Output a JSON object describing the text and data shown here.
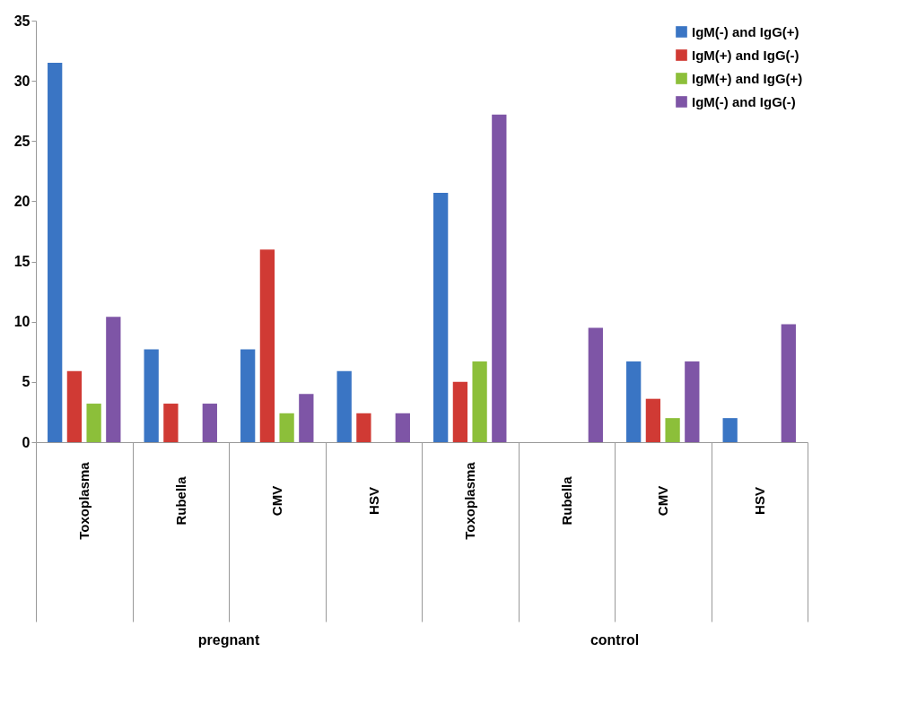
{
  "chart_data": {
    "type": "bar",
    "categories": [
      "Toxoplasma",
      "Rubella",
      "CMV",
      "HSV",
      "Toxoplasma",
      "Rubella",
      "CMV",
      "HSV"
    ],
    "ylim": [
      0,
      35
    ],
    "yticks": [
      0,
      5,
      10,
      15,
      20,
      25,
      30,
      35
    ],
    "grid": false,
    "legend": "top right",
    "annotations": [
      "pregnant",
      "control"
    ],
    "series": [
      {
        "name": "IgM(-) and IgG(+)",
        "color": "#3a75c4",
        "values": [
          31.5,
          7.7,
          7.7,
          5.9,
          20.7,
          0,
          6.7,
          2
        ]
      },
      {
        "name": "IgM(+) and IgG(-)",
        "color": "#d03a34",
        "values": [
          5.9,
          3.2,
          16,
          2.4,
          5,
          0,
          3.6,
          0
        ]
      },
      {
        "name": "IgM(+) and IgG(+)",
        "color": "#8cbf3a",
        "values": [
          3.2,
          0,
          2.4,
          0,
          6.7,
          0,
          2,
          0
        ]
      },
      {
        "name": "IgM(-) and IgG(-)",
        "color": "#7e55a6",
        "values": [
          10.4,
          3.2,
          4,
          2.4,
          27.2,
          9.5,
          6.7,
          9.8
        ]
      }
    ]
  }
}
